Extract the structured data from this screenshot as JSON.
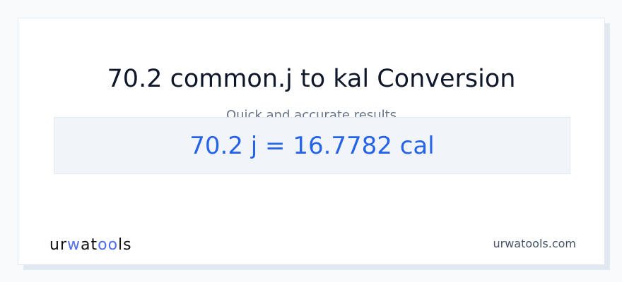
{
  "title": "70.2 common.j to kal Conversion",
  "subtitle": "Quick and accurate results",
  "result": "70.2 j = 16.7782 cal",
  "logo": {
    "part1": "ur",
    "part2": "w",
    "part3": "at",
    "part4": "oo",
    "part5": "ls"
  },
  "site": "urwatools.com",
  "colors": {
    "accent": "#2563eb",
    "logo_accent": "#4f6ef0"
  }
}
